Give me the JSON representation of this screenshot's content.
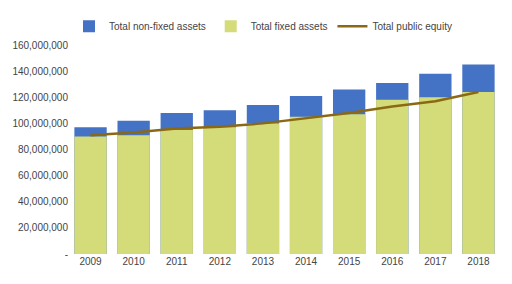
{
  "chart_data": {
    "type": "bar",
    "categories": [
      "2009",
      "2010",
      "2011",
      "2012",
      "2013",
      "2014",
      "2015",
      "2016",
      "2017",
      "2018"
    ],
    "series": [
      {
        "name": "Total non-fixed assets",
        "type": "bar",
        "color": "#4472C4",
        "values": [
          97000000,
          102000000,
          108000000,
          110000000,
          114000000,
          121000000,
          126000000,
          131000000,
          138000000,
          145000000
        ]
      },
      {
        "name": "Total fixed assets",
        "type": "bar",
        "color": "#D4DC7A",
        "values": [
          90000000,
          91000000,
          95000000,
          97000000,
          100000000,
          105000000,
          107000000,
          118000000,
          120000000,
          124000000
        ]
      },
      {
        "name": "Total public equity",
        "type": "line",
        "color": "#8B6914",
        "values": [
          91000000,
          93000000,
          96000000,
          97500000,
          100000000,
          104000000,
          108000000,
          113000000,
          117000000,
          124000000
        ]
      }
    ],
    "ylim": [
      0,
      160000000
    ],
    "yticks": [
      {
        "value": 0,
        "label": "-"
      },
      {
        "value": 20000000,
        "label": "20,000,000"
      },
      {
        "value": 40000000,
        "label": "40,000,000"
      },
      {
        "value": 60000000,
        "label": "60,000,000"
      },
      {
        "value": 80000000,
        "label": "80,000,000"
      },
      {
        "value": 100000000,
        "label": "100,000,000"
      },
      {
        "value": 120000000,
        "label": "120,000,000"
      },
      {
        "value": 140000000,
        "label": "140,000,000"
      },
      {
        "value": 160000000,
        "label": "160,000,000"
      }
    ],
    "grid": false,
    "legend": "upper left"
  }
}
